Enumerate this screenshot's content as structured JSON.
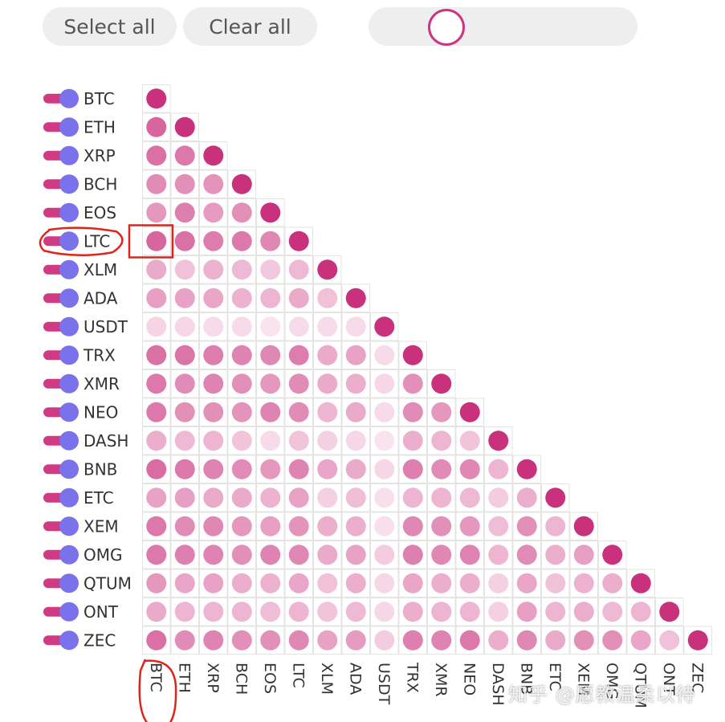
{
  "controls": {
    "select_all_label": "Select all",
    "clear_all_label": "Clear all",
    "slider_value": 0.25
  },
  "colors": {
    "toggle_track": "#cf3a82",
    "toggle_knob": "#7a72ea",
    "dot_strong": "#c9317c",
    "annotation": "#e0241b"
  },
  "chart_data": {
    "type": "heatmap",
    "title": "",
    "labels": [
      "BTC",
      "ETH",
      "XRP",
      "BCH",
      "EOS",
      "LTC",
      "XLM",
      "ADA",
      "USDT",
      "TRX",
      "XMR",
      "NEO",
      "DASH",
      "BNB",
      "ETC",
      "XEM",
      "OMG",
      "QTUM",
      "ONT",
      "ZEC"
    ],
    "matrix": [
      [
        1.0
      ],
      [
        0.72,
        1.0
      ],
      [
        0.66,
        0.62,
        1.0
      ],
      [
        0.52,
        0.5,
        0.48,
        1.0
      ],
      [
        0.46,
        0.58,
        0.44,
        0.5,
        1.0
      ],
      [
        0.72,
        0.66,
        0.6,
        0.62,
        0.54,
        1.0
      ],
      [
        0.36,
        0.24,
        0.32,
        0.28,
        0.2,
        0.28,
        1.0
      ],
      [
        0.42,
        0.4,
        0.38,
        0.32,
        0.3,
        0.36,
        0.24,
        1.0
      ],
      [
        0.14,
        0.12,
        0.1,
        0.1,
        0.06,
        0.1,
        0.1,
        0.1,
        1.0
      ],
      [
        0.66,
        0.64,
        0.6,
        0.56,
        0.54,
        0.6,
        0.36,
        0.4,
        0.1,
        1.0
      ],
      [
        0.62,
        0.52,
        0.56,
        0.5,
        0.46,
        0.52,
        0.36,
        0.34,
        0.12,
        0.5,
        1.0
      ],
      [
        0.62,
        0.5,
        0.5,
        0.48,
        0.56,
        0.52,
        0.3,
        0.36,
        0.1,
        0.52,
        0.46,
        1.0
      ],
      [
        0.34,
        0.28,
        0.3,
        0.22,
        0.1,
        0.22,
        0.16,
        0.12,
        0.06,
        0.34,
        0.3,
        0.22,
        1.0
      ],
      [
        0.68,
        0.62,
        0.56,
        0.52,
        0.46,
        0.56,
        0.38,
        0.36,
        0.12,
        0.58,
        0.52,
        0.54,
        0.3,
        1.0
      ],
      [
        0.4,
        0.42,
        0.36,
        0.36,
        0.32,
        0.4,
        0.16,
        0.26,
        0.08,
        0.3,
        0.3,
        0.28,
        0.18,
        0.34,
        1.0
      ],
      [
        0.62,
        0.52,
        0.54,
        0.46,
        0.42,
        0.48,
        0.34,
        0.34,
        0.08,
        0.54,
        0.5,
        0.46,
        0.26,
        0.5,
        0.3,
        1.0
      ],
      [
        0.62,
        0.58,
        0.56,
        0.5,
        0.56,
        0.54,
        0.36,
        0.4,
        0.18,
        0.58,
        0.54,
        0.56,
        0.3,
        0.52,
        0.34,
        0.42,
        1.0
      ],
      [
        0.46,
        0.38,
        0.4,
        0.34,
        0.32,
        0.38,
        0.24,
        0.34,
        0.12,
        0.38,
        0.34,
        0.34,
        0.16,
        0.38,
        0.24,
        0.32,
        0.34,
        1.0
      ],
      [
        0.36,
        0.3,
        0.3,
        0.3,
        0.26,
        0.3,
        0.22,
        0.28,
        0.12,
        0.34,
        0.3,
        0.3,
        0.16,
        0.42,
        0.3,
        0.34,
        0.28,
        0.3,
        1.0
      ],
      [
        0.66,
        0.52,
        0.56,
        0.5,
        0.5,
        0.54,
        0.4,
        0.44,
        0.18,
        0.58,
        0.56,
        0.62,
        0.34,
        0.54,
        0.36,
        0.5,
        0.5,
        0.38,
        0.24,
        1.0
      ]
    ],
    "highlighted_row": "LTC",
    "highlighted_column": "BTC",
    "highlighted_cell": {
      "row": "LTC",
      "column": "BTC"
    }
  },
  "watermark": "知乎 @愿教温柔以待"
}
